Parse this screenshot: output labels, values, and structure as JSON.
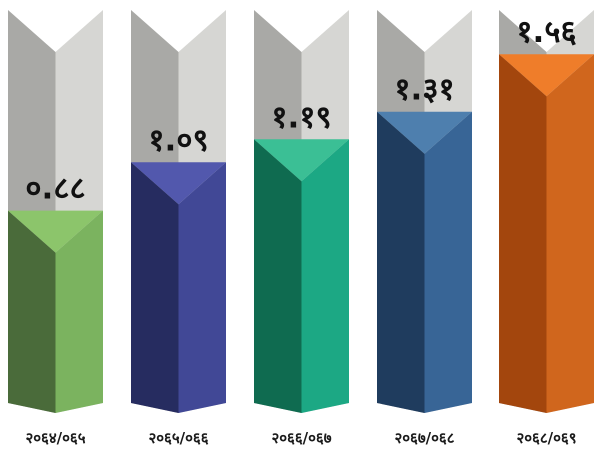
{
  "chart_data": {
    "type": "bar",
    "title": "",
    "xlabel": "",
    "ylabel": "",
    "categories": [
      "२०६४/०६५",
      "२०६५/०६६",
      "२०६६/०६७",
      "२०६७/०६८",
      "२०६८/०६९"
    ],
    "values": [
      0.88,
      1.09,
      1.19,
      1.31,
      1.56
    ],
    "value_labels": [
      "०.८८",
      "१.०९",
      "१.१९",
      "१.३१",
      "१.५६"
    ],
    "ylim": [
      0,
      1.9
    ],
    "grid": false,
    "legend": "none",
    "colors": [
      {
        "front": "#7bb35f",
        "side": "#4a6b3a",
        "top": "#8cc56b"
      },
      {
        "front": "#414896",
        "side": "#262c60",
        "top": "#5258ad"
      },
      {
        "front": "#1ca884",
        "side": "#0f6b50",
        "top": "#3bbf95"
      },
      {
        "front": "#386596",
        "side": "#1f3c5e",
        "top": "#4e7fae"
      },
      {
        "front": "#d0661d",
        "side": "#a3460d",
        "top": "#ef7d2a"
      }
    ],
    "tube_color": {
      "front": "#d6d6d3",
      "side": "#a9a9a6",
      "top": "#c3c3c0"
    }
  }
}
